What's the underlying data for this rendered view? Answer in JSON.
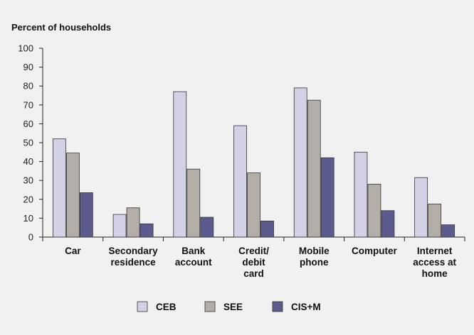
{
  "chart_data": {
    "type": "bar",
    "ylabel": "Percent of households",
    "ylim": [
      0,
      100
    ],
    "yticks": [
      0,
      10,
      20,
      30,
      40,
      50,
      60,
      70,
      80,
      90,
      100
    ],
    "grid": false,
    "legend_position": "bottom",
    "categories": [
      [
        "Car"
      ],
      [
        "Secondary",
        "residence"
      ],
      [
        "Bank",
        "account"
      ],
      [
        "Credit/",
        "debit",
        "card"
      ],
      [
        "Mobile",
        "phone"
      ],
      [
        "Computer"
      ],
      [
        "Internet",
        "access at",
        "home"
      ]
    ],
    "series": [
      {
        "name": "CEB",
        "color": "#d2d1e6",
        "values": [
          52,
          12,
          77,
          59,
          79,
          45,
          31.5
        ]
      },
      {
        "name": "SEE",
        "color": "#b3aea8",
        "values": [
          44.5,
          15.5,
          36,
          34,
          72.5,
          28,
          17.5
        ]
      },
      {
        "name": "CIS+M",
        "color": "#5d5b8d",
        "values": [
          23.5,
          7,
          10.5,
          8.5,
          42,
          14,
          6.5
        ]
      }
    ]
  }
}
